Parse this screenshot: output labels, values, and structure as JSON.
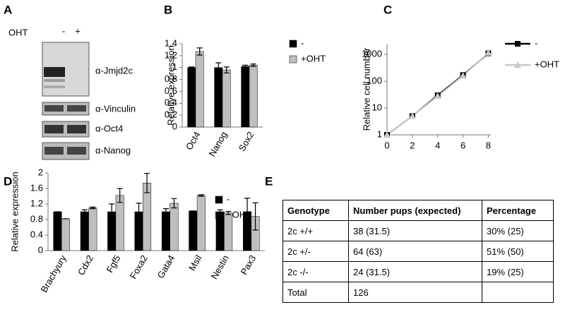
{
  "panel_labels": [
    "A",
    "B",
    "C",
    "D",
    "E"
  ],
  "blot": {
    "treatment": "OHT",
    "lanes": [
      "-",
      "+"
    ],
    "antibodies": [
      "α-Jmjd2c",
      "α-Vinculin",
      "α-Oct4",
      "α-Nanog"
    ]
  },
  "chart_data": [
    {
      "type": "bar",
      "y_label": "Relative expression",
      "categories": [
        "Oct4",
        "Nanog",
        "Sox2"
      ],
      "series": [
        {
          "name": "-",
          "color": "#000000",
          "values": [
            1.0,
            1.0,
            1.02
          ],
          "errors": [
            0.01,
            0.08,
            0.02
          ]
        },
        {
          "name": "+OHT",
          "color": "#bfbfbf",
          "values": [
            1.27,
            0.96,
            1.04
          ],
          "errors": [
            0.06,
            0.05,
            0.02
          ]
        }
      ],
      "ylim": [
        0,
        1.4
      ],
      "yticks": [
        0,
        0.2,
        0.4,
        0.6,
        0.8,
        1,
        1.2,
        1.4
      ],
      "grid": false
    },
    {
      "type": "line",
      "y_label": "Relative cell number",
      "log_y": true,
      "x": [
        0,
        2,
        4,
        6,
        8
      ],
      "series": [
        {
          "name": "-",
          "color": "#000000",
          "marker": "square",
          "values": [
            1,
            5,
            30,
            170,
            1100
          ]
        },
        {
          "name": "+OHT",
          "color": "#c8c8c8",
          "marker": "triangle",
          "values": [
            1,
            5,
            28,
            160,
            1150
          ]
        }
      ],
      "xlim": [
        0,
        8.2
      ],
      "xticks": [
        0,
        2,
        4,
        6,
        8
      ],
      "ylim": [
        1,
        2500
      ],
      "yticks": [
        1,
        10,
        100,
        1000
      ],
      "grid": false
    },
    {
      "type": "bar",
      "y_label": "Relative expression",
      "categories": [
        "Brachyury",
        "Cdx2",
        "Fgf5",
        "Foxa2",
        "Gata4",
        "Msil",
        "Nestin",
        "Pax3"
      ],
      "series": [
        {
          "name": "-",
          "color": "#000000",
          "values": [
            1.0,
            1.0,
            1.0,
            1.0,
            1.0,
            1.02,
            1.0,
            1.0
          ],
          "errors": [
            0.0,
            0.05,
            0.2,
            0.22,
            0.08,
            0.0,
            0.05,
            0.35
          ]
        },
        {
          "name": "+OHT",
          "color": "#bfbfbf",
          "values": [
            0.82,
            1.1,
            1.42,
            1.74,
            1.22,
            1.42,
            0.97,
            0.88
          ],
          "errors": [
            0.0,
            0.02,
            0.18,
            0.25,
            0.12,
            0.02,
            0.04,
            0.35
          ]
        }
      ],
      "ylim": [
        0,
        2
      ],
      "yticks": [
        0,
        0.4,
        0.8,
        1.2,
        1.6,
        2
      ],
      "grid": false
    }
  ],
  "table": {
    "header": [
      "Genotype",
      "Number pups (expected)",
      "Percentage"
    ],
    "rows": [
      [
        "2c +/+",
        "38 (31.5)",
        "30% (25)"
      ],
      [
        "2c +/-",
        "64 (63)",
        "51% (50)"
      ],
      [
        "2c -/-",
        "24 (31.5)",
        "19% (25)"
      ],
      [
        "Total",
        "126"
      ]
    ]
  }
}
